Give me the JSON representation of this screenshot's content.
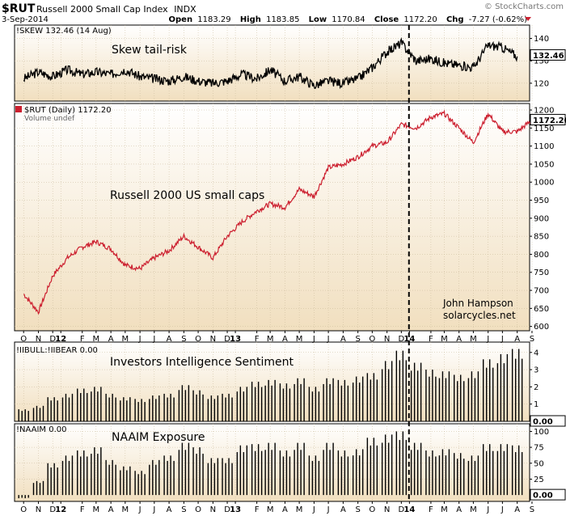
{
  "header": {
    "symbol": "$RUT",
    "name": "Russell 2000 Small Cap Index",
    "exchange": "INDX",
    "date": "3-Sep-2014",
    "open_label": "Open",
    "open": "1183.29",
    "high_label": "High",
    "high": "1183.85",
    "low_label": "Low",
    "low": "1170.84",
    "close_label": "Close",
    "close": "1172.20",
    "chg_label": "Chg",
    "chg": "-7.27 (-0.62%)",
    "source": "© StockCharts.com"
  },
  "colors": {
    "bg_top": "#ffffff",
    "bg_bottom": "#f1dfbf",
    "rut_line": "#cc1f2f",
    "ink": "#000000",
    "grid": "#c8b898"
  },
  "chart_data": [
    {
      "id": "skew",
      "type": "line",
      "label": "!SKEW 132.46 (14 Aug)",
      "annotation": "Skew tail-risk",
      "last_value": "132.46",
      "yticks": [
        "140",
        "130",
        "120"
      ],
      "ylim": [
        112,
        146
      ],
      "x": [
        "2011-10",
        "2011-11",
        "2011-12",
        "2012-01",
        "2012-02",
        "2012-03",
        "2012-04",
        "2012-05",
        "2012-06",
        "2012-07",
        "2012-08",
        "2012-09",
        "2012-10",
        "2012-11",
        "2012-12",
        "2013-01",
        "2013-02",
        "2013-03",
        "2013-04",
        "2013-05",
        "2013-06",
        "2013-07",
        "2013-08",
        "2013-09",
        "2013-10",
        "2013-11",
        "2013-12",
        "2014-01",
        "2014-02",
        "2014-03",
        "2014-04",
        "2014-05",
        "2014-06",
        "2014-07",
        "2014-08"
      ],
      "values": [
        122,
        125,
        123,
        126,
        124,
        125,
        124,
        126,
        123,
        122,
        121,
        123,
        121,
        120,
        121,
        124,
        122,
        126,
        121,
        123,
        119,
        121,
        120,
        122,
        127,
        134,
        138,
        130,
        131,
        129,
        128,
        127,
        137,
        136,
        132
      ]
    },
    {
      "id": "rut",
      "type": "line",
      "label": "$RUT (Daily) 1172.20",
      "volume_label": "Volume undef",
      "annotation": "Russell 2000 US small caps",
      "credit": [
        "John Hampson",
        "solarcycles.net"
      ],
      "last_value": "1172.20",
      "yticks": [
        "1200",
        "1150",
        "1100",
        "1050",
        "1000",
        "950",
        "900",
        "850",
        "800",
        "750",
        "700",
        "650",
        "600"
      ],
      "ylim": [
        588,
        1218
      ],
      "x": [
        "2011-10",
        "2011-11",
        "2011-12",
        "2012-01",
        "2012-02",
        "2012-03",
        "2012-04",
        "2012-05",
        "2012-06",
        "2012-07",
        "2012-08",
        "2012-09",
        "2012-10",
        "2012-11",
        "2012-12",
        "2013-01",
        "2013-02",
        "2013-03",
        "2013-04",
        "2013-05",
        "2013-06",
        "2013-07",
        "2013-08",
        "2013-09",
        "2013-10",
        "2013-11",
        "2013-12",
        "2014-01",
        "2014-02",
        "2014-03",
        "2014-04",
        "2014-05",
        "2014-06",
        "2014-07",
        "2014-08",
        "2014-09"
      ],
      "values": [
        690,
        640,
        740,
        790,
        820,
        835,
        815,
        770,
        760,
        790,
        810,
        850,
        820,
        790,
        850,
        890,
        920,
        940,
        930,
        980,
        960,
        1040,
        1050,
        1070,
        1100,
        1110,
        1160,
        1150,
        1180,
        1190,
        1150,
        1110,
        1190,
        1140,
        1140,
        1172
      ]
    },
    {
      "id": "iibull",
      "type": "bar",
      "label": "!IIBULL:!IIBEAR 0.00",
      "annotation": "Investors Intelligence Sentiment",
      "last_value": "0.00",
      "yticks": [
        "4",
        "3",
        "2",
        "1"
      ],
      "ylim": [
        0,
        4.6
      ],
      "x": [
        "2011-10",
        "2011-11",
        "2011-12",
        "2012-01",
        "2012-02",
        "2012-03",
        "2012-04",
        "2012-05",
        "2012-06",
        "2012-07",
        "2012-08",
        "2012-09",
        "2012-10",
        "2012-11",
        "2012-12",
        "2013-01",
        "2013-02",
        "2013-03",
        "2013-04",
        "2013-05",
        "2013-06",
        "2013-07",
        "2013-08",
        "2013-09",
        "2013-10",
        "2013-11",
        "2013-12",
        "2014-01",
        "2014-02",
        "2014-03",
        "2014-04",
        "2014-05",
        "2014-06",
        "2014-07",
        "2014-08"
      ],
      "values": [
        0.7,
        0.9,
        1.4,
        1.6,
        1.9,
        2.0,
        1.6,
        1.4,
        1.3,
        1.5,
        1.6,
        2.1,
        1.8,
        1.5,
        1.6,
        2.0,
        2.3,
        2.4,
        2.2,
        2.5,
        2.0,
        2.5,
        2.4,
        2.6,
        2.8,
        3.5,
        4.1,
        3.4,
        3.0,
        2.9,
        2.7,
        2.9,
        3.6,
        3.9,
        4.2
      ]
    },
    {
      "id": "naaim",
      "type": "bar",
      "label": "!NAAIM 0.00",
      "annotation": "NAAIM Exposure",
      "last_value": "0.00",
      "yticks": [
        "100",
        "75",
        "50",
        "25"
      ],
      "ylim": [
        -10,
        112
      ],
      "x": [
        "2011-10",
        "2011-11",
        "2011-12",
        "2012-01",
        "2012-02",
        "2012-03",
        "2012-04",
        "2012-05",
        "2012-06",
        "2012-07",
        "2012-08",
        "2012-09",
        "2012-10",
        "2012-11",
        "2012-12",
        "2013-01",
        "2013-02",
        "2013-03",
        "2013-04",
        "2013-05",
        "2013-06",
        "2013-07",
        "2013-08",
        "2013-09",
        "2013-10",
        "2013-11",
        "2013-12",
        "2014-01",
        "2014-02",
        "2014-03",
        "2014-04",
        "2014-05",
        "2014-06",
        "2014-07",
        "2014-08"
      ],
      "values": [
        -5,
        22,
        50,
        62,
        70,
        75,
        55,
        45,
        38,
        55,
        62,
        82,
        75,
        58,
        58,
        78,
        80,
        82,
        70,
        82,
        62,
        82,
        70,
        72,
        90,
        95,
        100,
        82,
        70,
        72,
        66,
        62,
        80,
        80,
        78
      ]
    }
  ],
  "x_axis": {
    "labels": [
      {
        "text": "O",
        "date": "2011-10-15"
      },
      {
        "text": "N",
        "date": "2011-11-15"
      },
      {
        "text": "D",
        "date": "2011-12-15"
      },
      {
        "text": "12",
        "date": "2012-01-01",
        "bold": true
      },
      {
        "text": "F",
        "date": "2012-02-15"
      },
      {
        "text": "M",
        "date": "2012-03-15"
      },
      {
        "text": "A",
        "date": "2012-04-15"
      },
      {
        "text": "M",
        "date": "2012-05-15"
      },
      {
        "text": "J",
        "date": "2012-06-15"
      },
      {
        "text": "J",
        "date": "2012-07-15"
      },
      {
        "text": "A",
        "date": "2012-08-15"
      },
      {
        "text": "S",
        "date": "2012-09-15"
      },
      {
        "text": "O",
        "date": "2012-10-15"
      },
      {
        "text": "N",
        "date": "2012-11-15"
      },
      {
        "text": "D",
        "date": "2012-12-15"
      },
      {
        "text": "13",
        "date": "2013-01-01",
        "bold": true
      },
      {
        "text": "F",
        "date": "2013-02-15"
      },
      {
        "text": "M",
        "date": "2013-03-15"
      },
      {
        "text": "A",
        "date": "2013-04-15"
      },
      {
        "text": "M",
        "date": "2013-05-15"
      },
      {
        "text": "J",
        "date": "2013-06-15"
      },
      {
        "text": "J",
        "date": "2013-07-15"
      },
      {
        "text": "A",
        "date": "2013-08-15"
      },
      {
        "text": "S",
        "date": "2013-09-15"
      },
      {
        "text": "O",
        "date": "2013-10-15"
      },
      {
        "text": "N",
        "date": "2013-11-15"
      },
      {
        "text": "D",
        "date": "2013-12-15"
      },
      {
        "text": "14",
        "date": "2014-01-01",
        "bold": true
      },
      {
        "text": "F",
        "date": "2014-02-15"
      },
      {
        "text": "M",
        "date": "2014-03-15"
      },
      {
        "text": "A",
        "date": "2014-04-15"
      },
      {
        "text": "M",
        "date": "2014-05-15"
      },
      {
        "text": "J",
        "date": "2014-06-15"
      },
      {
        "text": "J",
        "date": "2014-07-15"
      },
      {
        "text": "A",
        "date": "2014-08-15"
      },
      {
        "text": "S",
        "date": "2014-09-15"
      }
    ],
    "range": [
      "2011-09-26",
      "2014-09-10"
    ],
    "marker_date": "2013-12-31"
  }
}
